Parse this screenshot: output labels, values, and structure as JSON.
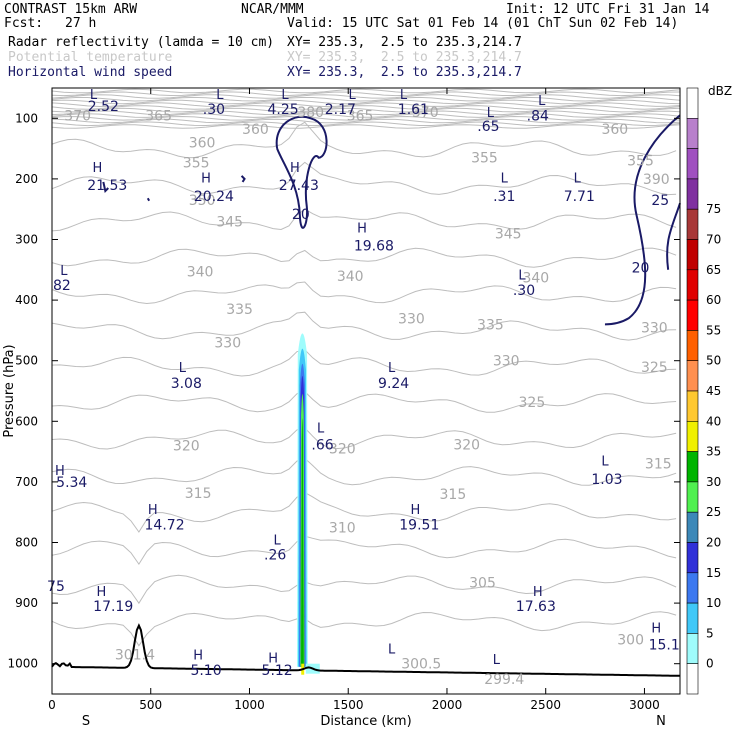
{
  "header": {
    "model": "CONTRAST 15km ARW",
    "org": "NCAR/MMM",
    "init": "Init: 12 UTC Fri 31 Jan 14",
    "fcst_label": "Fcst:",
    "fcst_value": "27 h",
    "valid": "Valid: 15 UTC Sat 01 Feb 14 (01 ChT Sun 02 Feb 14)",
    "fields": [
      {
        "name": "Radar reflectivity (lamda = 10 cm)",
        "xy": "XY= 235.3,  2.5 to 235.3,214.7",
        "color": "#000000"
      },
      {
        "name": "Potential temperature",
        "xy": "XY= 235.3,  2.5 to 235.3,214.7",
        "color": "#c8c8c8"
      },
      {
        "name": "Horizontal wind speed",
        "xy": "XY= 235.3,  2.5 to 235.3,214.7",
        "color": "#1a1a66"
      }
    ]
  },
  "chart_data": {
    "type": "contour",
    "xlabel": "Distance (km)",
    "ylabel": "Pressure (hPa)",
    "xlim": [
      0,
      3180
    ],
    "ylim": [
      1050,
      50
    ],
    "x_ticks": [
      0,
      500,
      1000,
      1500,
      2000,
      2500,
      3000
    ],
    "x_tick_labels": [
      "0",
      "500",
      "1000",
      "1500",
      "2000",
      "2500",
      "3000"
    ],
    "y_ticks": [
      100,
      200,
      300,
      400,
      500,
      600,
      700,
      800,
      900,
      1000
    ],
    "y_tick_labels": [
      "100",
      "200",
      "300",
      "400",
      "500",
      "600",
      "700",
      "800",
      "900",
      "1000"
    ],
    "x_end_labels": {
      "left": "S",
      "right": "N"
    },
    "colorbar": {
      "unit": "dBZ",
      "levels": [
        "0",
        "5",
        "10",
        "15",
        "20",
        "25",
        "30",
        "35",
        "40",
        "45",
        "50",
        "55",
        "60",
        "65",
        "70",
        "75"
      ],
      "colors": [
        "#ffffff",
        "#9ffcfc",
        "#40c8f8",
        "#3c78f0",
        "#3030d8",
        "#3c88b8",
        "#50f050",
        "#00b400",
        "#f0f000",
        "#ffc830",
        "#ff9050",
        "#ff6000",
        "#ff0000",
        "#e00000",
        "#c00000",
        "#a83838",
        "#8030a0",
        "#a050c0",
        "#b880cc",
        "#ffffff"
      ]
    },
    "theta_labels": [
      {
        "text": "370",
        "x": 130,
        "p": 95
      },
      {
        "text": "365",
        "x": 540,
        "p": 95
      },
      {
        "text": "380",
        "x": 1310,
        "p": 90
      },
      {
        "text": "365",
        "x": 1560,
        "p": 95
      },
      {
        "text": "370",
        "x": 1890,
        "p": 90
      },
      {
        "text": "360",
        "x": 760,
        "p": 140
      },
      {
        "text": "360",
        "x": 1030,
        "p": 118
      },
      {
        "text": "360",
        "x": 2850,
        "p": 118
      },
      {
        "text": "355",
        "x": 730,
        "p": 173
      },
      {
        "text": "355",
        "x": 2190,
        "p": 165
      },
      {
        "text": "355",
        "x": 2980,
        "p": 170
      },
      {
        "text": "350",
        "x": 760,
        "p": 235
      },
      {
        "text": "390",
        "x": 3060,
        "p": 200
      },
      {
        "text": "345",
        "x": 900,
        "p": 270
      },
      {
        "text": "345",
        "x": 2310,
        "p": 290
      },
      {
        "text": "340",
        "x": 750,
        "p": 353
      },
      {
        "text": "340",
        "x": 1510,
        "p": 360
      },
      {
        "text": "340",
        "x": 2450,
        "p": 363
      },
      {
        "text": "335",
        "x": 950,
        "p": 415
      },
      {
        "text": "335",
        "x": 2220,
        "p": 440
      },
      {
        "text": "330",
        "x": 890,
        "p": 470
      },
      {
        "text": "330",
        "x": 1820,
        "p": 430
      },
      {
        "text": "330",
        "x": 2300,
        "p": 500
      },
      {
        "text": "330",
        "x": 3050,
        "p": 445
      },
      {
        "text": "325",
        "x": 2430,
        "p": 568
      },
      {
        "text": "325",
        "x": 3050,
        "p": 510
      },
      {
        "text": "320",
        "x": 680,
        "p": 640
      },
      {
        "text": "320",
        "x": 1470,
        "p": 645
      },
      {
        "text": "320",
        "x": 2100,
        "p": 638
      },
      {
        "text": "315",
        "x": 740,
        "p": 718
      },
      {
        "text": "315",
        "x": 2030,
        "p": 720
      },
      {
        "text": "315",
        "x": 3070,
        "p": 670
      },
      {
        "text": "310",
        "x": 1470,
        "p": 775
      },
      {
        "text": "305",
        "x": 2180,
        "p": 866
      },
      {
        "text": "300",
        "x": 2930,
        "p": 960
      },
      {
        "text": "300.5",
        "x": 1870,
        "p": 1000
      },
      {
        "text": "299.4",
        "x": 2290,
        "p": 1025
      },
      {
        "text": "301.4",
        "x": 420,
        "p": 985
      }
    ],
    "wind_labels": [
      {
        "text": "2.52",
        "x": 260,
        "p": 80
      },
      {
        "text": ".30",
        "x": 820,
        "p": 85
      },
      {
        "text": "4.25",
        "x": 1170,
        "p": 85
      },
      {
        "text": "2.17",
        "x": 1460,
        "p": 85
      },
      {
        "text": "1.61",
        "x": 1830,
        "p": 85
      },
      {
        "text": ".65",
        "x": 2210,
        "p": 113
      },
      {
        "text": ".84",
        "x": 2460,
        "p": 95
      },
      {
        "text": "21.53",
        "x": 280,
        "p": 210
      },
      {
        "text": "20.24",
        "x": 820,
        "p": 228
      },
      {
        "text": "27.43",
        "x": 1250,
        "p": 210
      },
      {
        "text": "20",
        "x": 1260,
        "p": 258
      },
      {
        "text": "19.68",
        "x": 1630,
        "p": 310
      },
      {
        "text": ".31",
        "x": 2290,
        "p": 228
      },
      {
        "text": "7.71",
        "x": 2670,
        "p": 228
      },
      {
        "text": "25",
        "x": 3080,
        "p": 235
      },
      {
        "text": "20",
        "x": 2980,
        "p": 346
      },
      {
        "text": "82",
        "x": 50,
        "p": 375
      },
      {
        "text": ".30",
        "x": 2390,
        "p": 383
      },
      {
        "text": "3.08",
        "x": 680,
        "p": 537
      },
      {
        "text": "9.24",
        "x": 1730,
        "p": 537
      },
      {
        "text": ".66",
        "x": 1370,
        "p": 638
      },
      {
        "text": "1.03",
        "x": 2810,
        "p": 695
      },
      {
        "text": "5.34",
        "x": 100,
        "p": 700
      },
      {
        "text": "14.72",
        "x": 570,
        "p": 770
      },
      {
        "text": "19.51",
        "x": 1860,
        "p": 770
      },
      {
        "text": ".26",
        "x": 1130,
        "p": 820
      },
      {
        "text": "17.19",
        "x": 310,
        "p": 905
      },
      {
        "text": "17.63",
        "x": 2450,
        "p": 905
      },
      {
        "text": "15.1",
        "x": 3100,
        "p": 968
      },
      {
        "text": "5.10",
        "x": 780,
        "p": 1010
      },
      {
        "text": "5.12",
        "x": 1140,
        "p": 1010
      }
    ],
    "hl_markers": [
      {
        "text": "L",
        "x": 210,
        "p": 60
      },
      {
        "text": "L",
        "x": 850,
        "p": 60
      },
      {
        "text": "L",
        "x": 1180,
        "p": 60
      },
      {
        "text": "L",
        "x": 1520,
        "p": 60
      },
      {
        "text": "L",
        "x": 1780,
        "p": 60
      },
      {
        "text": "L",
        "x": 2220,
        "p": 90
      },
      {
        "text": "L",
        "x": 2480,
        "p": 70
      },
      {
        "text": "H",
        "x": 230,
        "p": 180
      },
      {
        "text": "H",
        "x": 780,
        "p": 198
      },
      {
        "text": "H",
        "x": 1230,
        "p": 180
      },
      {
        "text": "H",
        "x": 1570,
        "p": 280
      },
      {
        "text": "L",
        "x": 2290,
        "p": 198
      },
      {
        "text": "L",
        "x": 2660,
        "p": 198
      },
      {
        "text": "L",
        "x": 60,
        "p": 350
      },
      {
        "text": "L",
        "x": 2380,
        "p": 358
      },
      {
        "text": "L",
        "x": 660,
        "p": 510
      },
      {
        "text": "L",
        "x": 1720,
        "p": 510
      },
      {
        "text": "L",
        "x": 1360,
        "p": 610
      },
      {
        "text": "L",
        "x": 2800,
        "p": 665
      },
      {
        "text": "H",
        "x": 40,
        "p": 680
      },
      {
        "text": "H",
        "x": 510,
        "p": 745
      },
      {
        "text": "H",
        "x": 1840,
        "p": 745
      },
      {
        "text": "L",
        "x": 1140,
        "p": 795
      },
      {
        "text": "H",
        "x": 250,
        "p": 880
      },
      {
        "text": "H",
        "x": 2460,
        "p": 880
      },
      {
        "text": "H",
        "x": 3060,
        "p": 940
      },
      {
        "text": "H",
        "x": 740,
        "p": 985
      },
      {
        "text": "H",
        "x": 1120,
        "p": 990
      },
      {
        "text": "L",
        "x": 1720,
        "p": 975
      },
      {
        "text": "L",
        "x": 2250,
        "p": 992
      }
    ],
    "left_edge_labels": [
      {
        "text": "75",
        "x": 20,
        "p": 872
      }
    ]
  }
}
